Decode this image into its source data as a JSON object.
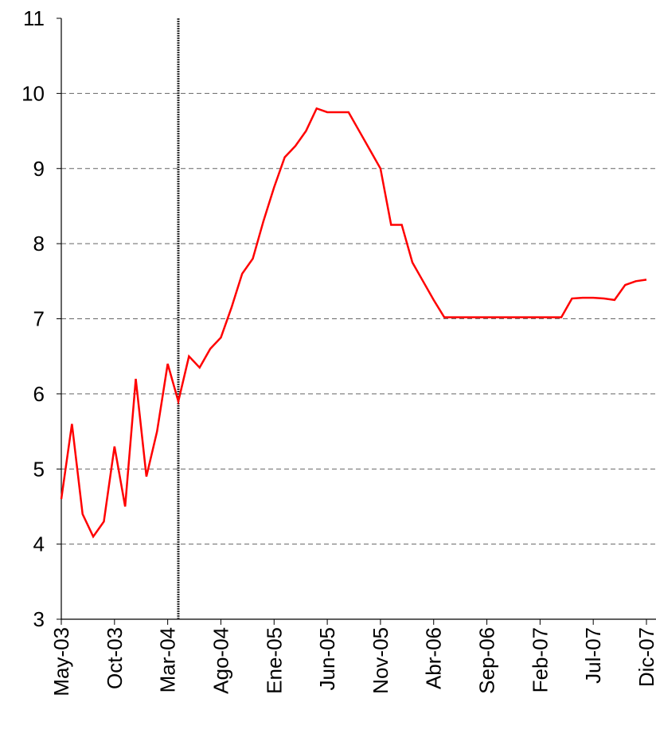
{
  "chart_data": {
    "type": "line",
    "x": [
      "2003-05",
      "2003-06",
      "2003-07",
      "2003-08",
      "2003-09",
      "2003-10",
      "2003-11",
      "2003-12",
      "2004-01",
      "2004-02",
      "2004-03",
      "2004-04",
      "2004-05",
      "2004-06",
      "2004-07",
      "2004-08",
      "2004-09",
      "2004-10",
      "2004-11",
      "2004-12",
      "2005-01",
      "2005-02",
      "2005-03",
      "2005-04",
      "2005-05",
      "2005-06",
      "2005-07",
      "2005-08",
      "2005-09",
      "2005-10",
      "2005-11",
      "2005-12",
      "2006-01",
      "2006-02",
      "2006-03",
      "2006-04",
      "2006-05",
      "2006-06",
      "2006-07",
      "2006-08",
      "2006-09",
      "2006-10",
      "2006-11",
      "2006-12",
      "2007-01",
      "2007-02",
      "2007-03",
      "2007-04",
      "2007-05",
      "2007-06",
      "2007-07",
      "2007-08",
      "2007-09",
      "2007-10",
      "2007-11",
      "2007-12"
    ],
    "series": [
      {
        "color": "#ff0000",
        "values": [
          4.6,
          5.6,
          4.4,
          4.1,
          4.3,
          5.3,
          4.5,
          6.2,
          4.9,
          5.5,
          6.4,
          5.9,
          6.5,
          6.35,
          6.6,
          6.75,
          7.15,
          7.6,
          7.8,
          8.3,
          8.75,
          9.15,
          9.3,
          9.5,
          9.8,
          9.75,
          9.75,
          9.75,
          9.5,
          9.25,
          9.0,
          8.25,
          8.25,
          7.75,
          7.5,
          7.25,
          7.02,
          7.02,
          7.02,
          7.02,
          7.02,
          7.02,
          7.02,
          7.02,
          7.02,
          7.02,
          7.02,
          7.02,
          7.27,
          7.28,
          7.28,
          7.27,
          7.25,
          7.45,
          7.5,
          7.52
        ]
      }
    ],
    "xlim": [
      "2003-05",
      "2007-12"
    ],
    "xticks": [
      {
        "value": "2003-05",
        "label": "May-03"
      },
      {
        "value": "2003-10",
        "label": "Oct-03"
      },
      {
        "value": "2004-03",
        "label": "Mar-04"
      },
      {
        "value": "2004-08",
        "label": "Ago-04"
      },
      {
        "value": "2005-01",
        "label": "Ene-05"
      },
      {
        "value": "2005-06",
        "label": "Jun-05"
      },
      {
        "value": "2005-11",
        "label": "Nov-05"
      },
      {
        "value": "2006-04",
        "label": "Abr-06"
      },
      {
        "value": "2006-09",
        "label": "Sep-06"
      },
      {
        "value": "2007-02",
        "label": "Feb-07"
      },
      {
        "value": "2007-07",
        "label": "Jul-07"
      },
      {
        "value": "2007-12",
        "label": "Dic-07"
      }
    ],
    "ylim": [
      3,
      11
    ],
    "yticks": [
      3,
      4,
      5,
      6,
      7,
      8,
      9,
      10,
      11
    ],
    "grid": true,
    "vline": "2004-04"
  }
}
